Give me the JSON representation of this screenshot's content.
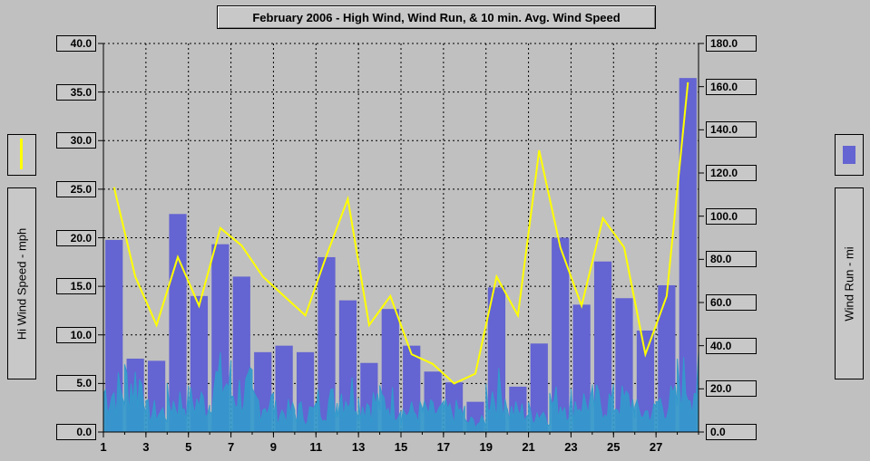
{
  "chart_data": {
    "type": "bar",
    "title": "February 2006 - High Wind, Wind Run, & 10 min. Avg. Wind Speed",
    "y_left_label": "Hi Wind Speed - mph",
    "y_right_label": "Wind Run - mi",
    "y_left_ticks": [
      "0.0",
      "5.0",
      "10.0",
      "15.0",
      "20.0",
      "25.0",
      "30.0",
      "35.0",
      "40.0"
    ],
    "y_right_ticks": [
      "0.0",
      "20.0",
      "40.0",
      "60.0",
      "80.0",
      "100.0",
      "120.0",
      "140.0",
      "160.0",
      "180.0"
    ],
    "x_ticks": [
      "1",
      "3",
      "5",
      "7",
      "9",
      "11",
      "13",
      "15",
      "17",
      "19",
      "21",
      "23",
      "25",
      "27"
    ],
    "ylim_left": [
      0,
      40
    ],
    "ylim_right": [
      0,
      180
    ],
    "grid": true,
    "days": [
      1,
      2,
      3,
      4,
      5,
      6,
      7,
      8,
      9,
      10,
      11,
      12,
      13,
      14,
      15,
      16,
      17,
      18,
      19,
      20,
      21,
      22,
      23,
      24,
      25,
      26,
      27,
      28
    ],
    "series": [
      {
        "name": "Wind Run - mi",
        "axis": "right",
        "style": "bar",
        "color": "#6464d2",
        "values": [
          89,
          34,
          33,
          101,
          63,
          87,
          72,
          37,
          40,
          37,
          81,
          61,
          32,
          57,
          40,
          28,
          23,
          14,
          67,
          21,
          41,
          90,
          59,
          79,
          62,
          47,
          68,
          164
        ]
      },
      {
        "name": "Hi Wind Speed - mph",
        "axis": "left",
        "style": "line",
        "color": "#ffff00",
        "values": [
          25.2,
          16.0,
          11.0,
          18.0,
          13.0,
          21.0,
          19.2,
          16.0,
          14.0,
          12.0,
          18.2,
          24.0,
          11.0,
          14.0,
          8.0,
          7.0,
          5.0,
          6.0,
          16.0,
          12.0,
          29.0,
          19.0,
          13.0,
          22.0,
          19.0,
          8.0,
          14.0,
          36.0
        ]
      },
      {
        "name": "10 min. Avg. Wind Speed",
        "axis": "left",
        "style": "area",
        "color": "#3399cc",
        "values": [
          4,
          5,
          2,
          3,
          3,
          5,
          4,
          3,
          2,
          2,
          3,
          4,
          3,
          3,
          2,
          2,
          2,
          1,
          4,
          2,
          2,
          3,
          3,
          3,
          3,
          2,
          3,
          5
        ]
      }
    ]
  }
}
